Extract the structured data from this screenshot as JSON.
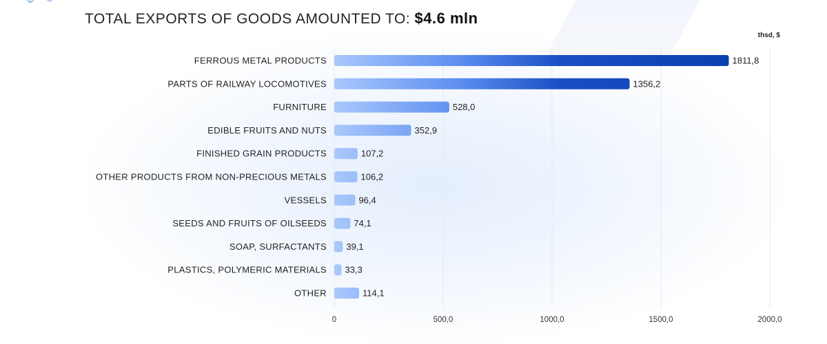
{
  "header": {
    "title_prefix": "TOTAL EXPORTS OF GOODS AMOUNTED TO:",
    "title_amount": "$4.6 mln"
  },
  "chart_data": {
    "type": "bar",
    "orientation": "horizontal",
    "unit": "thsd, $",
    "categories": [
      "FERROUS METAL PRODUCTS",
      "PARTS OF RAILWAY LOCOMOTIVES",
      "FURNITURE",
      "EDIBLE FRUITS AND NUTS",
      "FINISHED GRAIN PRODUCTS",
      "OTHER PRODUCTS FROM NON-PRECIOUS METALS",
      "VESSELS",
      "SEEDS AND FRUITS OF OILSEEDS",
      "SOAP, SURFACTANTS",
      "PLASTICS, POLYMERIC MATERIALS",
      "OTHER"
    ],
    "values": [
      1811.8,
      1356.2,
      528.0,
      352.9,
      107.2,
      106.2,
      96.4,
      74.1,
      39.1,
      33.3,
      114.1
    ],
    "value_labels": [
      "1811,8",
      "1356,2",
      "528,0",
      "352,9",
      "107,2",
      "106,2",
      "96,4",
      "74,1",
      "39,1",
      "33,3",
      "114,1"
    ],
    "xlim": [
      0,
      2000
    ],
    "xticks": [
      0,
      500,
      1000,
      1500,
      2000
    ],
    "xtick_labels": [
      "0",
      "500,0",
      "1000,0",
      "1500,0",
      "2000,0"
    ],
    "grid": true,
    "colors": {
      "bar_light": "#a9c8fb",
      "bar_dark": "#0a3fb0",
      "grid": "#e4e8f0"
    }
  }
}
